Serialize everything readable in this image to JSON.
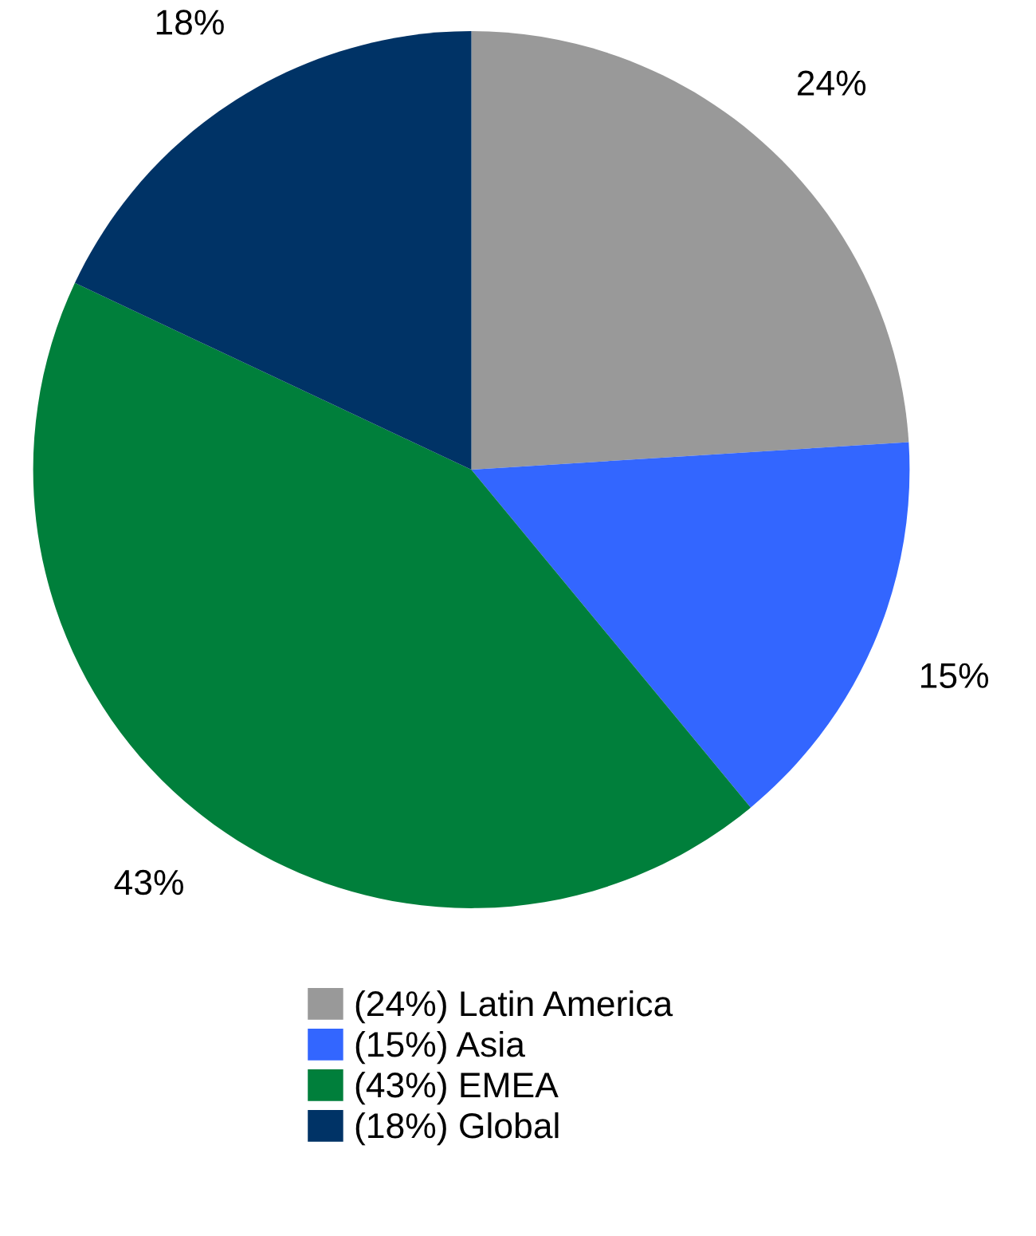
{
  "chart_data": {
    "type": "pie",
    "categories": [
      "(24%) Latin America",
      "(15%) Asia",
      "(43%) EMEA",
      "(18%) Global"
    ],
    "values": [
      24,
      15,
      43,
      18
    ],
    "value_labels": [
      "24%",
      "15%",
      "43%",
      "18%"
    ],
    "colors": [
      "#999999",
      "#3366ff",
      "#007f3b",
      "#003366"
    ],
    "legend": "bottom"
  }
}
